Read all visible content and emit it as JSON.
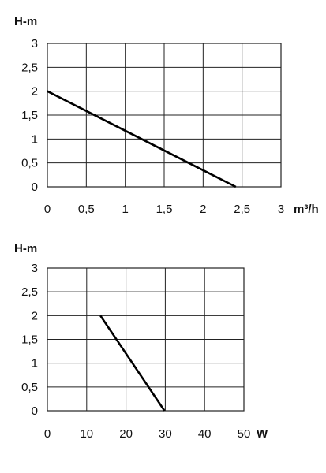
{
  "chart_data": [
    {
      "type": "line",
      "ylabel": "H-m",
      "xlabel": "m³/h",
      "xlim": [
        0,
        3
      ],
      "ylim": [
        0,
        3
      ],
      "x_ticks": [
        "0",
        "0,5",
        "1",
        "1,5",
        "2",
        "2,5",
        "3"
      ],
      "y_ticks": [
        "0",
        "0,5",
        "1",
        "1,5",
        "2",
        "2,5",
        "3"
      ],
      "grid": true,
      "series": [
        {
          "x": [
            0,
            2.42
          ],
          "y": [
            2,
            0
          ]
        }
      ]
    },
    {
      "type": "line",
      "ylabel": "H-m",
      "xlabel": "W",
      "xlim": [
        0,
        50
      ],
      "ylim": [
        0,
        3
      ],
      "x_ticks": [
        "0",
        "10",
        "20",
        "30",
        "40",
        "50"
      ],
      "y_ticks": [
        "0",
        "0,5",
        "1",
        "1,5",
        "2",
        "2,5",
        "3"
      ],
      "grid": true,
      "series": [
        {
          "x": [
            13.5,
            29.8
          ],
          "y": [
            2,
            0
          ]
        }
      ]
    }
  ]
}
